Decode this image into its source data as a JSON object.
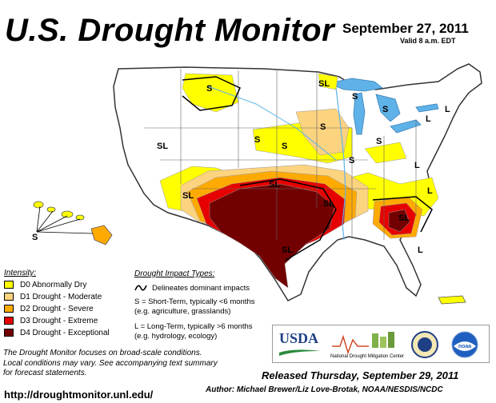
{
  "header": {
    "title": "U.S. Drought Monitor",
    "date": "September 27, 2011",
    "valid": "Valid 8 a.m. EDT"
  },
  "legend": {
    "title": "Intensity:",
    "items": [
      {
        "label": "D0 Abnormally Dry",
        "color": "#ffff00"
      },
      {
        "label": "D1 Drought - Moderate",
        "color": "#fcd37f"
      },
      {
        "label": "D2 Drought - Severe",
        "color": "#ffaa00"
      },
      {
        "label": "D3 Drought - Extreme",
        "color": "#e60000"
      },
      {
        "label": "D4 Drought - Exceptional",
        "color": "#730000"
      }
    ]
  },
  "impact": {
    "title": "Drought Impact Types:",
    "delineates": "Delineates dominant impacts",
    "short_line1": "S = Short-Term, typically <6 months",
    "short_line2": "(e.g. agriculture, grasslands)",
    "long_line1": "L = Long-Term, typically >6 months",
    "long_line2": "(e.g. hydrology, ecology)"
  },
  "map_labels": [
    "S",
    "SL",
    "L"
  ],
  "note": {
    "line1": "The Drought Monitor focuses on broad-scale conditions.",
    "line2": "Local conditions may vary. See accompanying text summary",
    "line3": "for forecast statements."
  },
  "url": "http://droughtmonitor.unl.edu/",
  "released": "Released Thursday, September 29, 2011",
  "author": "Author: Michael Brewer/Liz Love-Brotak, NOAA/NESDIS/NCDC",
  "logos": {
    "usda": "USDA",
    "ndmc": "National Drought Mitigation Center",
    "noaa": "noaa"
  },
  "colors": {
    "water": "#5fb2e8",
    "land": "#ffffff",
    "border": "#555555"
  }
}
